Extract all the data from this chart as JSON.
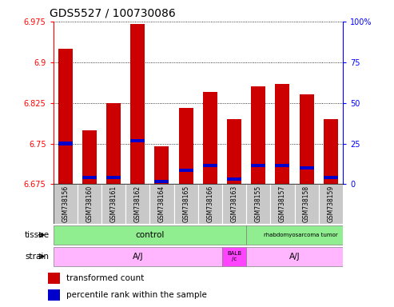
{
  "title": "GDS5527 / 100730086",
  "samples": [
    "GSM738156",
    "GSM738160",
    "GSM738161",
    "GSM738162",
    "GSM738164",
    "GSM738165",
    "GSM738166",
    "GSM738163",
    "GSM738155",
    "GSM738157",
    "GSM738158",
    "GSM738159"
  ],
  "bar_values": [
    6.925,
    6.775,
    6.825,
    6.97,
    6.745,
    6.815,
    6.845,
    6.795,
    6.855,
    6.86,
    6.84,
    6.795
  ],
  "blue_values": [
    6.75,
    6.688,
    6.688,
    6.755,
    6.68,
    6.7,
    6.71,
    6.685,
    6.71,
    6.71,
    6.705,
    6.688
  ],
  "ymin": 6.675,
  "ymax": 6.975,
  "yticks": [
    6.675,
    6.75,
    6.825,
    6.9,
    6.975
  ],
  "right_yticks": [
    0,
    25,
    50,
    75,
    100
  ],
  "grid_values": [
    6.675,
    6.75,
    6.825,
    6.9,
    6.975
  ],
  "bar_color": "#CC0000",
  "blue_color": "#0000CC",
  "bg_color": "#FFFFFF",
  "title_fontsize": 10,
  "tick_fontsize": 7,
  "label_fontsize": 7.5,
  "sample_fontsize": 5.5,
  "tissue_control_color": "#90EE90",
  "tissue_rhabdo_color": "#90EE90",
  "strain_aj_color": "#FFB6FF",
  "strain_balb_color": "#FF44FF",
  "gray_color": "#C8C8C8",
  "n_control": 8,
  "n_balb": 1,
  "n_aj2": 4
}
